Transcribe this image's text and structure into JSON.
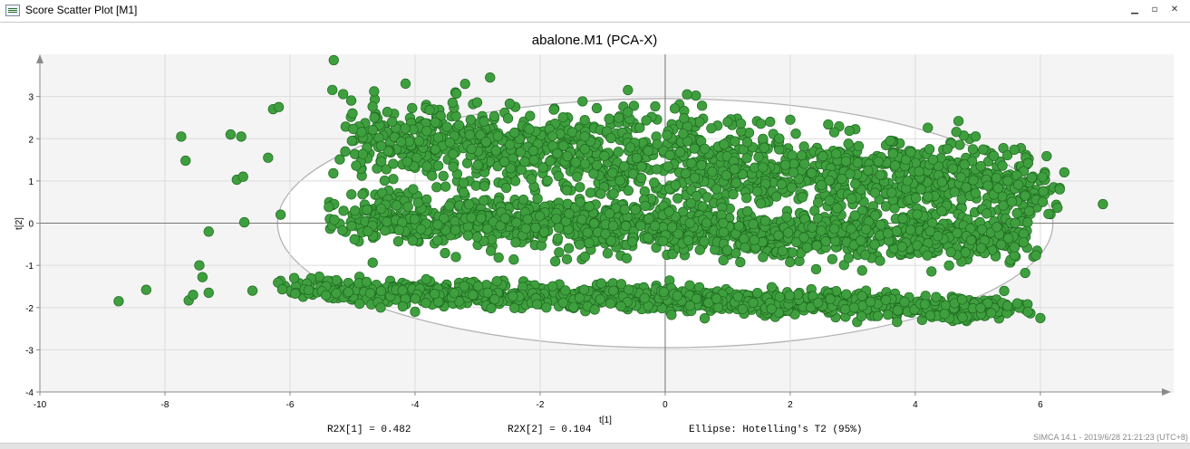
{
  "window": {
    "title": "Score Scatter Plot [M1]",
    "controls": [
      "▁",
      "▫",
      "✕"
    ]
  },
  "chart_data": {
    "type": "scatter",
    "title": "abalone.M1 (PCA-X)",
    "xlabel": "t[1]",
    "ylabel": "t[2]",
    "xlim": [
      -10,
      7.9
    ],
    "ylim": [
      -4,
      4
    ],
    "xticks": [
      -10,
      -8,
      -6,
      -4,
      -2,
      0,
      2,
      4,
      6
    ],
    "yticks": [
      -4,
      -3,
      -2,
      -1,
      0,
      1,
      2,
      3
    ],
    "grid": true,
    "point_color": "#3f9f3f",
    "point_edge_color": "#1f6b1f",
    "plot_background": "#f4f4f4",
    "ellipse": {
      "label": "Hotelling's T2 (95%)",
      "center": [
        0,
        0
      ],
      "semi_axes": [
        6.2,
        2.95
      ],
      "color": "#b4b4b4"
    },
    "clusters": [
      {
        "name_note": "upper band",
        "x_range": [
          -5.5,
          6.5
        ],
        "y_center_start": 2.1,
        "y_center_end": 0.8,
        "spread": 0.55,
        "count": 1400
      },
      {
        "name_note": "middle band",
        "x_range": [
          -5.5,
          6.0
        ],
        "y_center_start": 0.15,
        "y_center_end": -0.45,
        "spread": 0.32,
        "count": 1300
      },
      {
        "name_note": "lower band",
        "x_range": [
          -6.3,
          6.0
        ],
        "y_center_start": -1.55,
        "y_center_end": -2.05,
        "spread": 0.15,
        "count": 1200
      }
    ],
    "outliers": [
      [
        -8.74,
        -1.85
      ],
      [
        -8.3,
        -1.58
      ],
      [
        -7.74,
        2.05
      ],
      [
        -7.67,
        1.48
      ],
      [
        -7.62,
        -1.83
      ],
      [
        -7.55,
        -1.7
      ],
      [
        -7.45,
        -1.0
      ],
      [
        -7.4,
        -1.28
      ],
      [
        -7.3,
        -1.65
      ],
      [
        -7.3,
        -0.2
      ],
      [
        -6.95,
        2.1
      ],
      [
        -6.85,
        1.03
      ],
      [
        -6.78,
        2.05
      ],
      [
        -6.75,
        1.1
      ],
      [
        -6.73,
        0.02
      ],
      [
        -6.6,
        -1.6
      ],
      [
        -6.35,
        1.55
      ],
      [
        -6.27,
        2.7
      ],
      [
        -6.18,
        2.75
      ],
      [
        -6.15,
        0.2
      ],
      [
        -5.3,
        3.86
      ],
      [
        -5.0,
        2.6
      ],
      [
        -4.65,
        2.5
      ],
      [
        -3.2,
        3.3
      ],
      [
        -2.8,
        3.45
      ],
      [
        0.35,
        3.05
      ],
      [
        1.0,
        2.4
      ],
      [
        2.0,
        2.45
      ],
      [
        3.6,
        1.95
      ],
      [
        7.0,
        0.45
      ],
      [
        -4.55,
        -2.0
      ],
      [
        -1.9,
        -2.0
      ],
      [
        -4.0,
        -2.1
      ],
      [
        3.4,
        -2.2
      ],
      [
        5.8,
        -2.1
      ],
      [
        6.0,
        -2.25
      ]
    ],
    "annotations": [
      "R2X[1] = 0.482",
      "R2X[2] = 0.104",
      "Ellipse: Hotelling's T2 (95%)"
    ]
  },
  "stamp": "SIMCA 14.1 - 2019/6/28 21:21:23 (UTC+8)"
}
